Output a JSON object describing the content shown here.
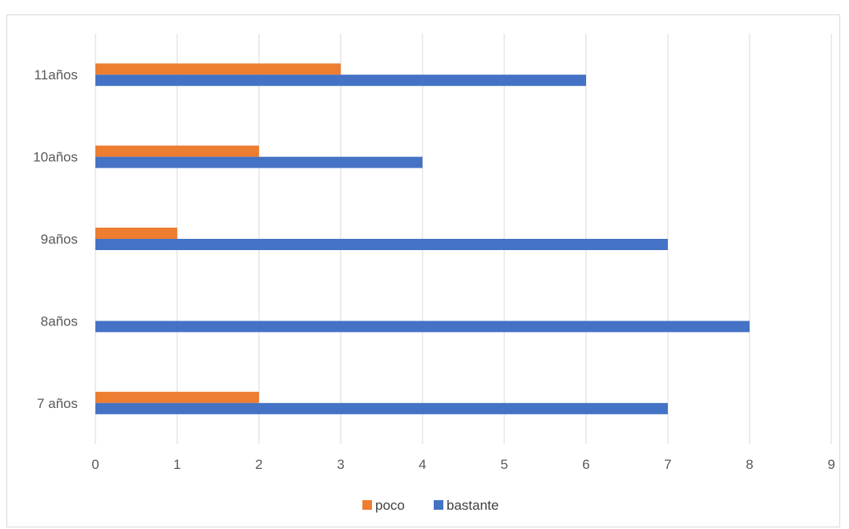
{
  "chart_data": {
    "type": "bar",
    "orientation": "horizontal",
    "categories": [
      "7 años",
      "8años",
      "9años",
      "10años",
      "11años"
    ],
    "series": [
      {
        "name": "bastante",
        "color": "#4472C4",
        "values": [
          7,
          8,
          7,
          4,
          6
        ]
      },
      {
        "name": "poco",
        "color": "#ED7D31",
        "values": [
          2,
          0,
          1,
          2,
          3
        ]
      }
    ],
    "xlim": [
      0,
      9
    ],
    "x_ticks": [
      "0",
      "1",
      "2",
      "3",
      "4",
      "5",
      "6",
      "7",
      "8",
      "9"
    ],
    "grid": true,
    "legend_position": "bottom",
    "legend_order": [
      "poco",
      "bastante"
    ]
  }
}
